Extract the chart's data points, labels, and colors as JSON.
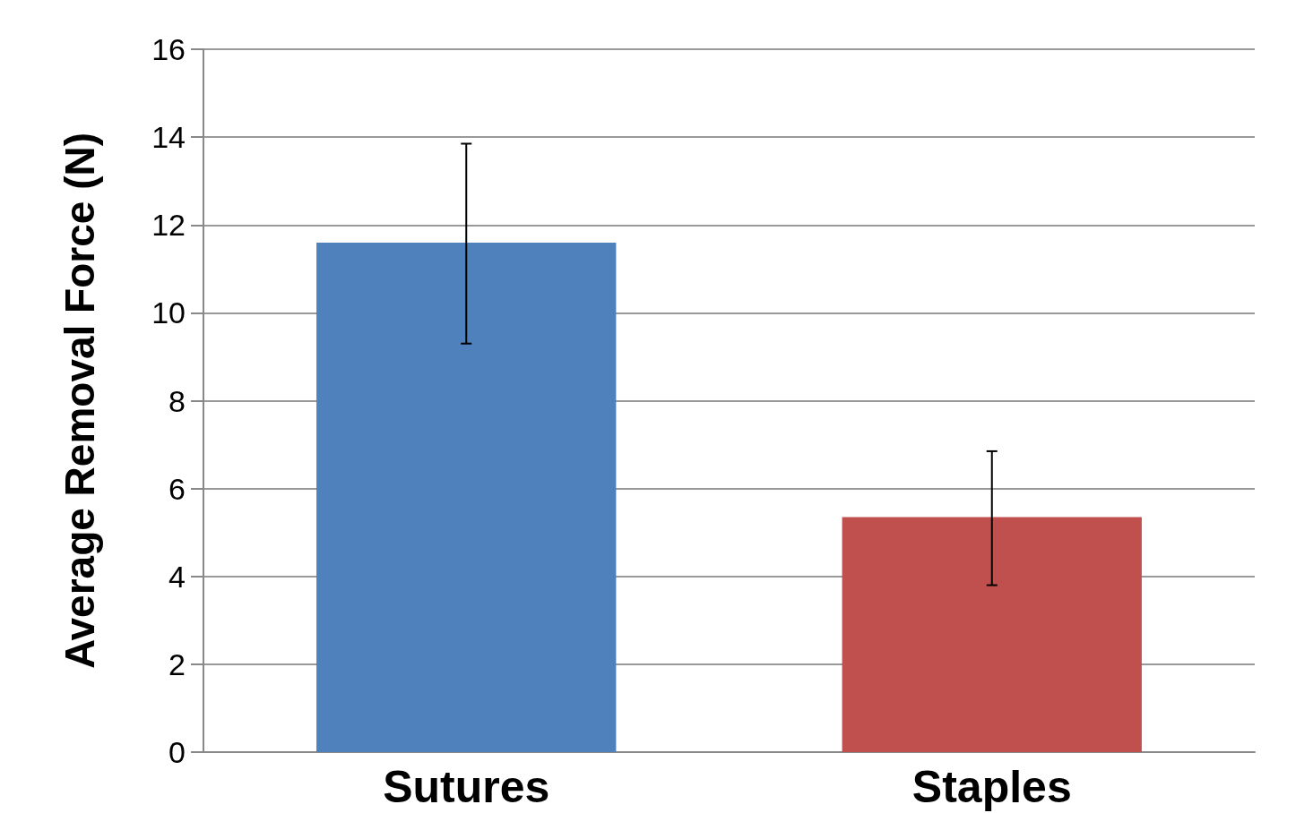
{
  "chart_data": {
    "type": "bar",
    "ylabel": "Average Removal Force (N)",
    "categories": [
      "Sutures",
      "Staples"
    ],
    "values": [
      11.6,
      5.35
    ],
    "colors": [
      "#4f81bd",
      "#c0504d"
    ],
    "errors": [
      [
        9.3,
        13.85
      ],
      [
        3.8,
        6.85
      ]
    ],
    "ylim": [
      0,
      16
    ],
    "yticks": [
      0,
      2,
      4,
      6,
      8,
      10,
      12,
      14,
      16
    ],
    "grid": "y"
  }
}
